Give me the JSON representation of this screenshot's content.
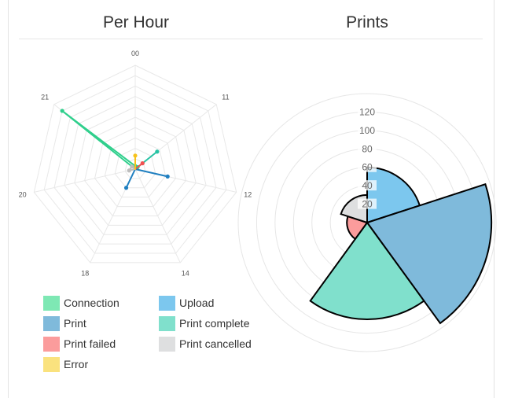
{
  "panels": {
    "left_title": "Per Hour",
    "right_title": "Prints"
  },
  "legend": [
    {
      "label": "Connection",
      "color": "#7ee8b4"
    },
    {
      "label": "Upload",
      "color": "#7cc7ee"
    },
    {
      "label": "Print",
      "color": "#7fbadb"
    },
    {
      "label": "Print complete",
      "color": "#80e0cc"
    },
    {
      "label": "Print failed",
      "color": "#fb9c9c"
    },
    {
      "label": "Print cancelled",
      "color": "#dedfe0"
    },
    {
      "label": "Error",
      "color": "#fae27e"
    }
  ],
  "chart_data": [
    {
      "type": "radar",
      "title": "Per Hour",
      "categories": [
        "00",
        "11",
        "12",
        "14",
        "18",
        "20",
        "21"
      ],
      "rmax": 10,
      "grid_levels": 10,
      "series": [
        {
          "name": "Connection",
          "color": "#2fcf8c",
          "values": [
            0.3,
            0.3,
            0,
            0,
            0,
            0,
            9.0
          ]
        },
        {
          "name": "Upload",
          "color": "#2a8fcf",
          "values": [
            0,
            0,
            0,
            0,
            0,
            0,
            0
          ]
        },
        {
          "name": "Print",
          "color": "#1f7fc0",
          "values": [
            0,
            0,
            3.2,
            0,
            2.0,
            0,
            0
          ]
        },
        {
          "name": "Print complete",
          "color": "#27c3a4",
          "values": [
            0,
            2.7,
            0,
            0,
            0,
            0,
            0
          ]
        },
        {
          "name": "Print failed",
          "color": "#f05252",
          "values": [
            0,
            0.9,
            0,
            0,
            0,
            0,
            0
          ]
        },
        {
          "name": "Print cancelled",
          "color": "#bdbdbd",
          "values": [
            0,
            0,
            0,
            0,
            0,
            0.6,
            0.4
          ]
        },
        {
          "name": "Error",
          "color": "#f6c21c",
          "values": [
            1.3,
            0,
            0,
            0,
            0,
            0,
            0
          ]
        }
      ]
    },
    {
      "type": "polarArea",
      "title": "Prints",
      "rmax": 140,
      "ticks": [
        20,
        40,
        60,
        80,
        100,
        120
      ],
      "categories": [
        "Upload",
        "Print",
        "Print complete",
        "Print failed",
        "Print cancelled"
      ],
      "values": [
        60,
        135,
        105,
        22,
        30
      ],
      "colors": [
        "#7cc7ee",
        "#7fbadb",
        "#80e0cc",
        "#fb9c9c",
        "#dedfe0"
      ]
    }
  ]
}
